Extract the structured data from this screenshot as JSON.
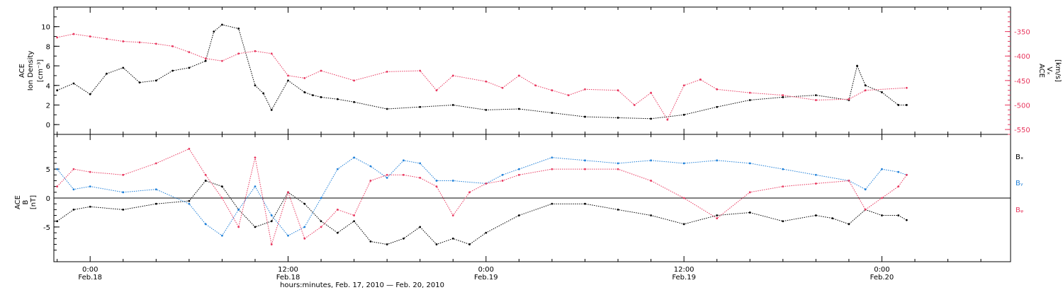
{
  "x_axis_title": "hours:minutes, Feb. 17, 2010 — Feb. 20, 2010",
  "x_tick_labels": [
    {
      "time": "0:00",
      "date": "Feb.18"
    },
    {
      "time": "12:00",
      "date": "Feb.18"
    },
    {
      "time": "0:00",
      "date": "Feb.19"
    },
    {
      "time": "12:00",
      "date": "Feb.19"
    },
    {
      "time": "0:00",
      "date": "Feb.20"
    }
  ],
  "colors": {
    "black": "#000000",
    "pink": "#e8385f",
    "blue": "#1e7fd8"
  },
  "chart_data": [
    {
      "type": "scatter",
      "title": "",
      "x_unit": "hours since Feb. 17, 2010 00:00",
      "xlim": [
        21.8,
        79.8
      ],
      "left_axis": {
        "label_line1": "ACE",
        "label_line2": "Ion Density",
        "unit": "[cm⁻³]",
        "ylim": [
          -1,
          12
        ],
        "ticks": [
          0,
          2,
          4,
          6,
          8,
          10
        ]
      },
      "right_axis": {
        "label_line1": "ACE",
        "label_line2": "Vₓ",
        "unit": "[km/s]",
        "ylim": [
          -560,
          -300
        ],
        "ticks": [
          -350,
          -400,
          -450,
          -500,
          -550
        ]
      },
      "series": [
        {
          "name": "",
          "color": "#000000",
          "axis": "left",
          "x": [
            22.0,
            23.0,
            24.0,
            25.0,
            26.0,
            27.0,
            28.0,
            29.0,
            30.0,
            31.0,
            31.5,
            32.0,
            33.0,
            34.0,
            34.5,
            35.0,
            36.0,
            37.0,
            37.5,
            38.0,
            39.0,
            40.0,
            42.0,
            44.0,
            46.0,
            48.0,
            50.0,
            52.0,
            54.0,
            56.0,
            58.0,
            60.0,
            62.0,
            64.0,
            66.0,
            68.0,
            70.0,
            70.5,
            71.0,
            72.0,
            73.0,
            73.5
          ],
          "y": [
            3.5,
            4.2,
            3.1,
            5.2,
            5.8,
            4.3,
            4.5,
            5.5,
            5.8,
            6.5,
            9.5,
            10.2,
            9.8,
            4.0,
            3.2,
            1.5,
            4.5,
            3.3,
            3.0,
            2.8,
            2.6,
            2.3,
            1.6,
            1.8,
            2.0,
            1.5,
            1.6,
            1.2,
            0.8,
            0.7,
            0.6,
            1.0,
            1.8,
            2.5,
            2.8,
            3.0,
            2.5,
            6.0,
            4.0,
            3.3,
            2.0,
            2.0
          ]
        },
        {
          "name": "",
          "color": "#e8385f",
          "axis": "right",
          "x": [
            22.0,
            23.0,
            24.0,
            25.0,
            26.0,
            27.0,
            28.0,
            29.0,
            30.0,
            31.0,
            32.0,
            33.0,
            34.0,
            35.0,
            36.0,
            37.0,
            38.0,
            40.0,
            42.0,
            44.0,
            45.0,
            46.0,
            48.0,
            49.0,
            50.0,
            51.0,
            52.0,
            53.0,
            54.0,
            56.0,
            57.0,
            58.0,
            59.0,
            60.0,
            61.0,
            62.0,
            64.0,
            66.0,
            68.0,
            70.0,
            71.0,
            73.5
          ],
          "y": [
            -362,
            -355,
            -360,
            -365,
            -370,
            -372,
            -375,
            -380,
            -392,
            -405,
            -410,
            -395,
            -390,
            -395,
            -440,
            -445,
            -430,
            -450,
            -432,
            -430,
            -470,
            -440,
            -452,
            -465,
            -440,
            -460,
            -470,
            -480,
            -468,
            -470,
            -500,
            -475,
            -530,
            -460,
            -448,
            -468,
            -475,
            -480,
            -490,
            -488,
            -470,
            -465
          ]
        }
      ]
    },
    {
      "type": "scatter",
      "title": "",
      "x_unit": "hours since Feb. 17, 2010 00:00",
      "xlim": [
        21.8,
        79.8
      ],
      "left_axis": {
        "label_line1": "ACE",
        "label_line2": "B",
        "unit": "[nT]",
        "ylim": [
          -11,
          11
        ],
        "ticks": [
          5,
          0,
          -5
        ]
      },
      "zero_line": true,
      "series": [
        {
          "name": "Bₓ",
          "color": "#000000",
          "x": [
            22.0,
            23.0,
            24.0,
            26.0,
            28.0,
            30.0,
            31.0,
            32.0,
            33.0,
            34.0,
            35.0,
            36.0,
            37.0,
            38.0,
            39.0,
            40.0,
            41.0,
            42.0,
            43.0,
            44.0,
            45.0,
            46.0,
            47.0,
            48.0,
            50.0,
            52.0,
            54.0,
            56.0,
            58.0,
            60.0,
            62.0,
            64.0,
            66.0,
            68.0,
            69.0,
            70.0,
            71.0,
            72.0,
            73.0,
            73.5
          ],
          "y": [
            -4.0,
            -2.0,
            -1.5,
            -2.0,
            -1.0,
            -0.5,
            3.0,
            2.0,
            -2.0,
            -5.0,
            -4.0,
            1.0,
            -1.0,
            -4.0,
            -6.0,
            -4.0,
            -7.5,
            -8.0,
            -7.0,
            -5.0,
            -8.0,
            -7.0,
            -8.0,
            -6.0,
            -3.0,
            -1.0,
            -1.0,
            -2.0,
            -3.0,
            -4.5,
            -3.0,
            -2.5,
            -4.0,
            -3.0,
            -3.5,
            -4.5,
            -2.0,
            -3.0,
            -3.0,
            -3.8
          ]
        },
        {
          "name": "Bᵧ",
          "color": "#1e7fd8",
          "x": [
            22.0,
            23.0,
            24.0,
            26.0,
            28.0,
            30.0,
            31.0,
            32.0,
            33.0,
            34.0,
            35.0,
            36.0,
            37.0,
            38.0,
            39.0,
            40.0,
            41.0,
            42.0,
            43.0,
            44.0,
            45.0,
            46.0,
            48.0,
            49.0,
            50.0,
            52.0,
            54.0,
            56.0,
            58.0,
            60.0,
            62.0,
            64.0,
            66.0,
            68.0,
            70.0,
            71.0,
            72.0,
            73.0,
            73.5
          ],
          "y": [
            5.0,
            1.5,
            2.0,
            1.0,
            1.5,
            -1.0,
            -4.5,
            -6.5,
            -2.0,
            2.0,
            -3.0,
            -6.5,
            -5.0,
            0.0,
            5.0,
            7.0,
            5.5,
            3.5,
            6.5,
            6.0,
            3.0,
            3.0,
            2.5,
            4.0,
            5.0,
            7.0,
            6.5,
            6.0,
            6.5,
            6.0,
            6.5,
            6.0,
            5.0,
            4.0,
            3.0,
            1.5,
            5.0,
            4.5,
            4.0
          ]
        },
        {
          "name": "Bᵩ",
          "color": "#e8385f",
          "x": [
            22.0,
            23.0,
            24.0,
            26.0,
            28.0,
            30.0,
            31.0,
            32.0,
            33.0,
            34.0,
            35.0,
            36.0,
            37.0,
            38.0,
            39.0,
            40.0,
            41.0,
            42.0,
            43.0,
            44.0,
            45.0,
            46.0,
            47.0,
            48.0,
            49.0,
            50.0,
            52.0,
            54.0,
            56.0,
            58.0,
            60.0,
            62.0,
            64.0,
            66.0,
            68.0,
            70.0,
            71.0,
            72.0,
            73.0,
            73.5
          ],
          "y": [
            2.0,
            5.0,
            4.5,
            4.0,
            6.0,
            8.5,
            4.0,
            0.0,
            -5.0,
            7.0,
            -8.0,
            1.0,
            -7.0,
            -5.0,
            -2.0,
            -3.0,
            3.0,
            4.0,
            4.0,
            3.5,
            2.0,
            -3.0,
            1.0,
            2.5,
            3.0,
            4.0,
            5.0,
            5.0,
            5.0,
            3.0,
            0.0,
            -3.5,
            1.0,
            2.0,
            2.5,
            3.0,
            -2.0,
            0.0,
            2.0,
            4.0
          ]
        }
      ]
    }
  ]
}
